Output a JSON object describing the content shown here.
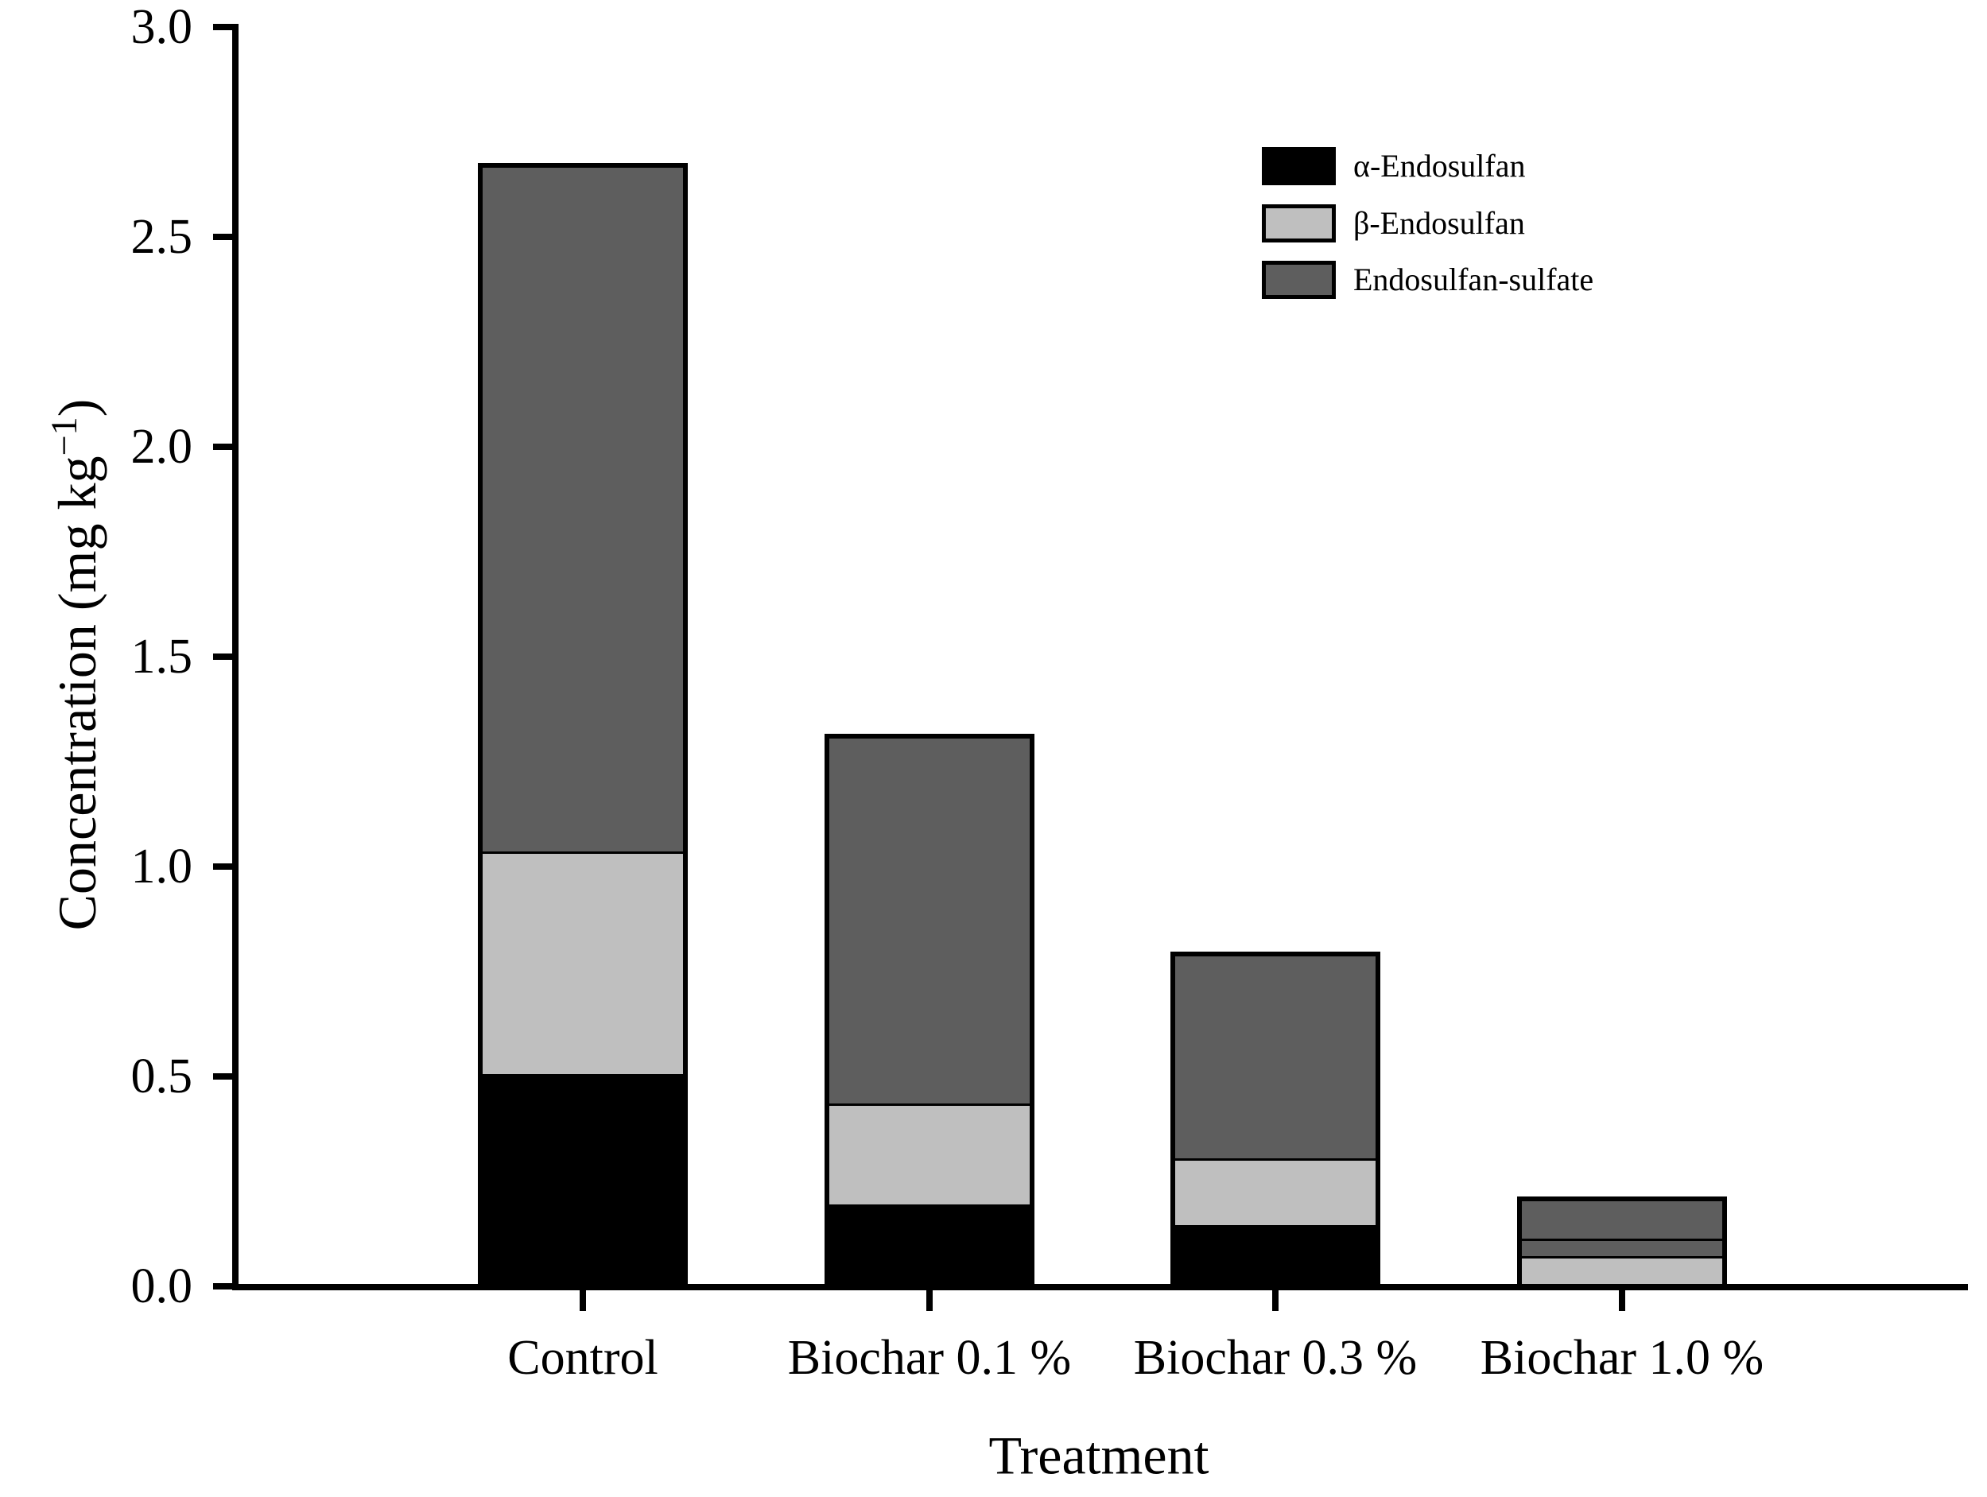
{
  "chart_data": {
    "type": "bar",
    "stacked": true,
    "title": "",
    "xlabel": "Treatment",
    "ylabel": "Concentration (mg kg−1)",
    "ylabel_parts": {
      "prefix": "Concentration (mg kg",
      "sup": "−1",
      "suffix": ")"
    },
    "ylim": [
      0.0,
      3.0
    ],
    "yticks": [
      0.0,
      0.5,
      1.0,
      1.5,
      2.0,
      2.5,
      3.0
    ],
    "ytick_labels": [
      "0.0",
      "0.5",
      "1.0",
      "1.5",
      "2.0",
      "2.5",
      "3.0"
    ],
    "grid": "off",
    "categories": [
      "Control",
      "Biochar 0.1 %",
      "Biochar 0.3 %",
      "Biochar 1.0 %"
    ],
    "series": [
      {
        "name": "α-Endosulfan",
        "color": "#000000",
        "values": [
          0.5,
          0.19,
          0.14,
          0.0
        ]
      },
      {
        "name": "β-Endosulfan",
        "color": "#bfbfbf",
        "values": [
          0.53,
          0.24,
          0.16,
          0.07
        ]
      },
      {
        "name": "Endosulfan-sulfate",
        "color": "#5e5e5e",
        "values": [
          1.63,
          0.87,
          0.48,
          0.13
        ]
      }
    ],
    "totals": [
      2.66,
      1.3,
      0.78,
      0.2
    ],
    "bars": [
      {
        "category": "Control",
        "segments": [
          {
            "series": "α-Endosulfan",
            "value": 0.5
          },
          {
            "series": "β-Endosulfan",
            "value": 0.53
          },
          {
            "series": "Endosulfan-sulfate",
            "value": 1.63
          }
        ]
      },
      {
        "category": "Biochar 0.1 %",
        "segments": [
          {
            "series": "α-Endosulfan",
            "value": 0.19
          },
          {
            "series": "β-Endosulfan",
            "value": 0.24
          },
          {
            "series": "Endosulfan-sulfate",
            "value": 0.87
          }
        ]
      },
      {
        "category": "Biochar 0.3 %",
        "segments": [
          {
            "series": "α-Endosulfan",
            "value": 0.14
          },
          {
            "series": "β-Endosulfan",
            "value": 0.16
          },
          {
            "series": "Endosulfan-sulfate",
            "value": 0.48
          }
        ]
      },
      {
        "category": "Biochar 1.0 %",
        "segments": [
          {
            "series": "β-Endosulfan",
            "value": 0.066
          },
          {
            "series": "Endosulfan-sulfate",
            "value": 0.042
          },
          {
            "series": "Endosulfan-sulfate",
            "value": 0.089
          }
        ]
      }
    ],
    "legend": {
      "position": "upper-right",
      "entries": [
        {
          "label": "α-Endosulfan",
          "color": "#000000"
        },
        {
          "label": "β-Endosulfan",
          "color": "#bfbfbf"
        },
        {
          "label": "Endosulfan-sulfate",
          "color": "#5e5e5e"
        }
      ]
    },
    "colors": {
      "axis": "#000000",
      "bar_border": "#000000",
      "background": "#ffffff"
    }
  }
}
